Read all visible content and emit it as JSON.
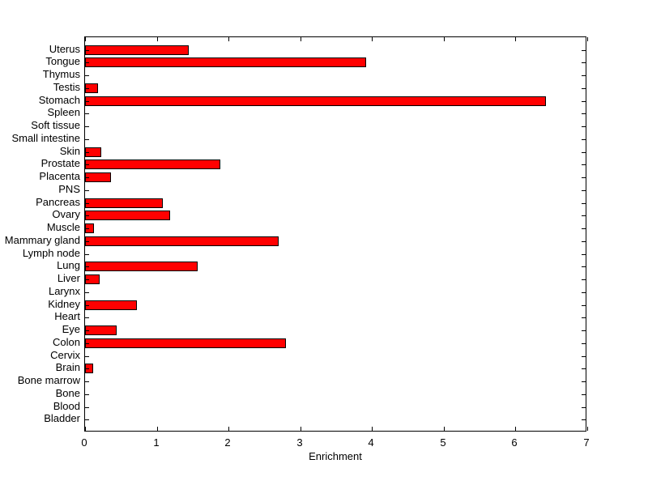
{
  "chart_data": {
    "type": "bar",
    "orientation": "horizontal",
    "title": "",
    "xlabel": "Enrichment",
    "ylabel": "",
    "xlim": [
      0,
      7
    ],
    "xticks": [
      "0",
      "1",
      "2",
      "3",
      "4",
      "5",
      "6",
      "7"
    ],
    "xtick_values": [
      0,
      1,
      2,
      3,
      4,
      5,
      6,
      7
    ],
    "grid": false,
    "legend": false,
    "bar_color": "#ff0000",
    "bar_edge_color": "#000000",
    "axis_color": "#000000",
    "background_color": "#ffffff",
    "categories_top_to_bottom": [
      "Uterus",
      "Tongue",
      "Thymus",
      "Testis",
      "Stomach",
      "Spleen",
      "Soft tissue",
      "Small intestine",
      "Skin",
      "Prostate",
      "Placenta",
      "PNS",
      "Pancreas",
      "Ovary",
      "Muscle",
      "Mammary gland",
      "Lymph node",
      "Lung",
      "Liver",
      "Larynx",
      "Kidney",
      "Heart",
      "Eye",
      "Colon",
      "Cervix",
      "Brain",
      "Bone marrow",
      "Bone",
      "Blood",
      "Bladder"
    ],
    "values_top_to_bottom": [
      1.45,
      3.92,
      0,
      0.18,
      6.42,
      0,
      0,
      0,
      0.23,
      1.89,
      0.36,
      0,
      1.08,
      1.19,
      0.12,
      2.7,
      0,
      1.57,
      0.2,
      0,
      0.72,
      0,
      0.44,
      2.8,
      0,
      0.11,
      0,
      0,
      0,
      0
    ]
  }
}
